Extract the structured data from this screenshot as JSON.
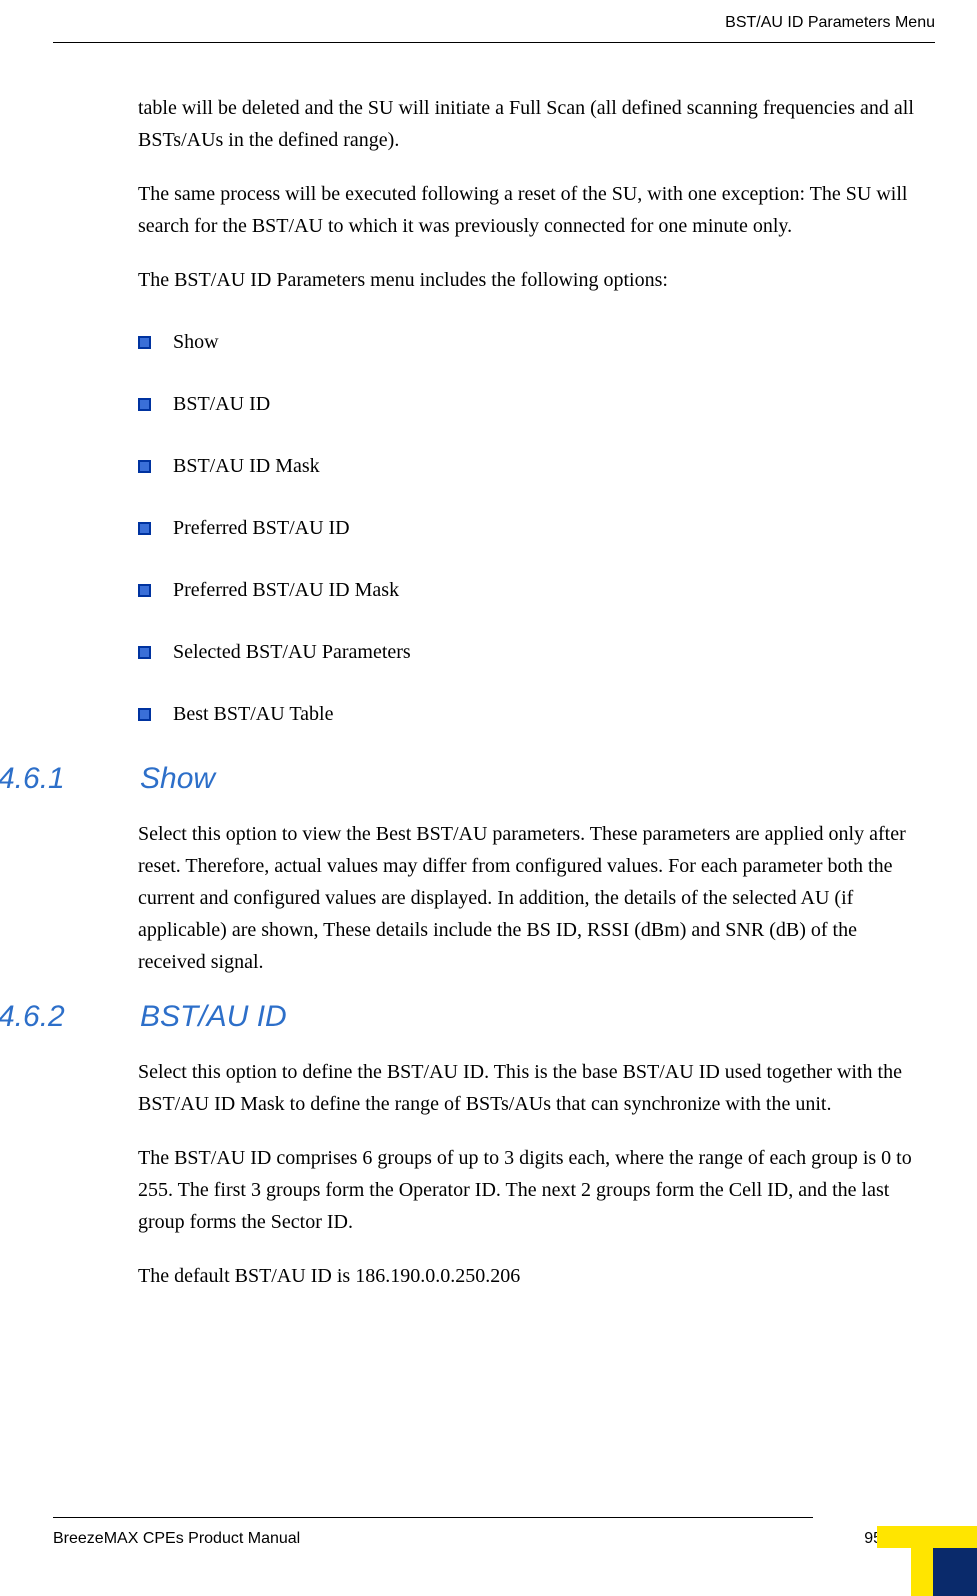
{
  "header": {
    "right": "BST/AU ID Parameters Menu"
  },
  "intro": {
    "para1": "table will be deleted and the SU will initiate a Full Scan (all defined scanning frequencies and all  BSTs/AUs in the defined range).",
    "para2": "The same process will be executed following a reset of the SU, with one exception: The SU will search for the BST/AU to which it was previously connected for one minute only.",
    "para3": "The BST/AU ID Parameters menu includes the following options:"
  },
  "menu_items": {
    "i0": "Show",
    "i1": "BST/AU ID",
    "i2": "BST/AU ID Mask",
    "i3": "Preferred BST/AU ID",
    "i4": "Preferred BST/AU ID Mask",
    "i5": "Selected BST/AU Parameters",
    "i6": "Best BST/AU Table"
  },
  "sections": {
    "s1": {
      "number": "4.6.1",
      "title": "Show",
      "para1": "Select this option to view the Best BST/AU parameters. These parameters are applied only after reset. Therefore, actual values may differ from configured values. For each parameter both the current and configured values are displayed. In addition, the details of the selected AU (if applicable) are shown, These details include the BS ID, RSSI (dBm) and SNR (dB) of the received signal."
    },
    "s2": {
      "number": "4.6.2",
      "title": "BST/AU ID",
      "para1": "Select this option to define the BST/AU ID. This is the base BST/AU ID used together with the BST/AU ID Mask to define the range of BSTs/AUs that can synchronize with the unit.",
      "para2": "The BST/AU ID comprises 6 groups of up to 3 digits each, where the range of each group is 0 to 255. The first 3 groups form the Operator ID. The next 2 groups form the Cell ID, and the last group forms the Sector ID.",
      "para3": "The default BST/AU ID is 186.190.0.0.250.206"
    }
  },
  "footer": {
    "left": "BreezeMAX CPEs Product Manual",
    "pagenum": "95"
  },
  "colors": {
    "heading": "#2d6fc9",
    "bullet_border": "#0033a0",
    "bullet_fill": "#3a6fd8",
    "corner_yellow": "#ffe500",
    "corner_blue": "#0a2a6b"
  }
}
